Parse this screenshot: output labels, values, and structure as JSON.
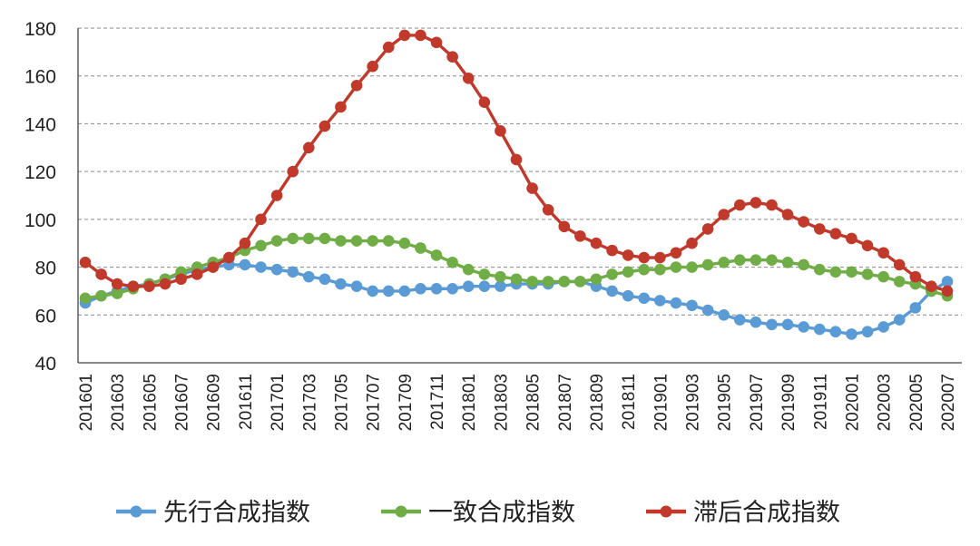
{
  "chart_data": {
    "type": "line",
    "x": [
      "201601",
      "201602",
      "201603",
      "201604",
      "201605",
      "201606",
      "201607",
      "201608",
      "201609",
      "201610",
      "201611",
      "201612",
      "201701",
      "201702",
      "201703",
      "201704",
      "201705",
      "201706",
      "201707",
      "201708",
      "201709",
      "201710",
      "201711",
      "201712",
      "201801",
      "201802",
      "201803",
      "201804",
      "201805",
      "201806",
      "201807",
      "201808",
      "201809",
      "201810",
      "201811",
      "201812",
      "201901",
      "201902",
      "201903",
      "201904",
      "201905",
      "201906",
      "201907",
      "201908",
      "201909",
      "201910",
      "201911",
      "201912",
      "202001",
      "202002",
      "202003",
      "202004",
      "202005",
      "202006",
      "202007"
    ],
    "x_tick_labels": [
      "201601",
      "201603",
      "201605",
      "201607",
      "201609",
      "201611",
      "201701",
      "201703",
      "201705",
      "201707",
      "201709",
      "201711",
      "201801",
      "201803",
      "201805",
      "201807",
      "201809",
      "201811",
      "201901",
      "201903",
      "201905",
      "201907",
      "201909",
      "201911",
      "202001",
      "202003",
      "202005",
      "202007"
    ],
    "ylim": [
      40,
      180
    ],
    "y_ticks": [
      40,
      60,
      80,
      100,
      120,
      140,
      160,
      180
    ],
    "grid": "horizontal dashed",
    "legend": "bottom",
    "series": [
      {
        "name": "先行合成指数",
        "color": "#5b9bd5",
        "values": [
          65,
          68,
          70,
          72,
          73,
          75,
          77,
          79,
          80,
          81,
          81,
          80,
          79,
          78,
          76,
          75,
          73,
          72,
          70,
          70,
          70,
          71,
          71,
          71,
          72,
          72,
          72,
          73,
          73,
          73,
          74,
          74,
          72,
          70,
          68,
          67,
          66,
          65,
          64,
          62,
          60,
          58,
          57,
          56,
          56,
          55,
          54,
          53,
          52,
          53,
          55,
          58,
          63,
          70,
          74
        ]
      },
      {
        "name": "一致合成指数",
        "color": "#70ad47",
        "values": [
          67,
          68,
          69,
          71,
          73,
          75,
          78,
          80,
          82,
          84,
          87,
          89,
          91,
          92,
          92,
          92,
          91,
          91,
          91,
          91,
          90,
          88,
          85,
          82,
          79,
          77,
          76,
          75,
          74,
          74,
          74,
          74,
          75,
          77,
          78,
          79,
          79,
          80,
          80,
          81,
          82,
          83,
          83,
          83,
          82,
          81,
          79,
          78,
          78,
          77,
          76,
          74,
          73,
          70,
          68
        ]
      },
      {
        "name": "滞后合成指数",
        "color": "#c0392b",
        "values": [
          82,
          77,
          73,
          72,
          72,
          73,
          75,
          77,
          80,
          84,
          90,
          100,
          110,
          120,
          130,
          139,
          147,
          156,
          164,
          172,
          177,
          177,
          174,
          168,
          159,
          149,
          137,
          125,
          113,
          104,
          97,
          93,
          90,
          87,
          85,
          84,
          84,
          86,
          90,
          96,
          102,
          106,
          107,
          106,
          102,
          99,
          96,
          94,
          92,
          89,
          86,
          81,
          76,
          72,
          70
        ]
      }
    ]
  }
}
